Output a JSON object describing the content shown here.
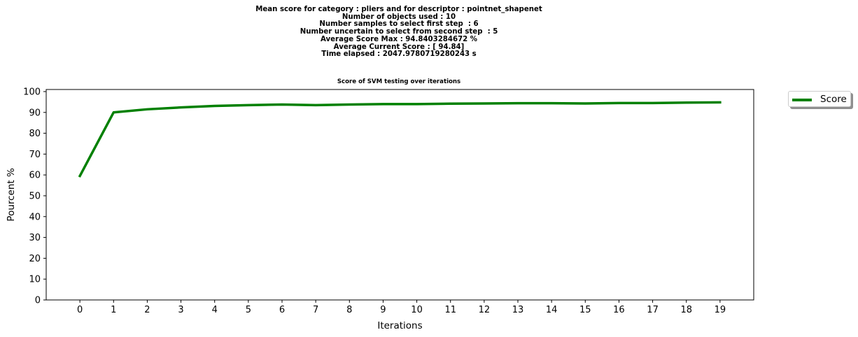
{
  "header": {
    "lines": [
      "Mean score for category : pliers and for descriptor : pointnet_shapenet",
      "Number of objects used : 10",
      "Number samples to select first step  : 6",
      "Number uncertain to select from second step  : 5",
      "Average Score Max : 94.8403284672 %",
      "Average Current Score : [ 94.84]",
      "Time elapsed : 2047.9780719280243 s"
    ]
  },
  "chart_data": {
    "type": "line",
    "title": "Score of SVM testing over iterations",
    "xlabel": "Iterations",
    "ylabel": "Pourcent %",
    "x": [
      0,
      1,
      2,
      3,
      4,
      5,
      6,
      7,
      8,
      9,
      10,
      11,
      12,
      13,
      14,
      15,
      16,
      17,
      18,
      19
    ],
    "series": [
      {
        "name": "Score",
        "color": "#008000",
        "values": [
          59.5,
          90.0,
          91.5,
          92.4,
          93.1,
          93.5,
          93.8,
          93.5,
          93.8,
          94.0,
          94.0,
          94.2,
          94.3,
          94.4,
          94.4,
          94.3,
          94.5,
          94.5,
          94.7,
          94.84
        ]
      }
    ],
    "xlim": [
      -1,
      20
    ],
    "ylim": [
      0,
      101
    ],
    "xticks": [
      0,
      1,
      2,
      3,
      4,
      5,
      6,
      7,
      8,
      9,
      10,
      11,
      12,
      13,
      14,
      15,
      16,
      17,
      18,
      19
    ],
    "yticks": [
      0,
      10,
      20,
      30,
      40,
      50,
      60,
      70,
      80,
      90,
      100
    ],
    "grid": false,
    "legend_position": "outside-top-right"
  }
}
